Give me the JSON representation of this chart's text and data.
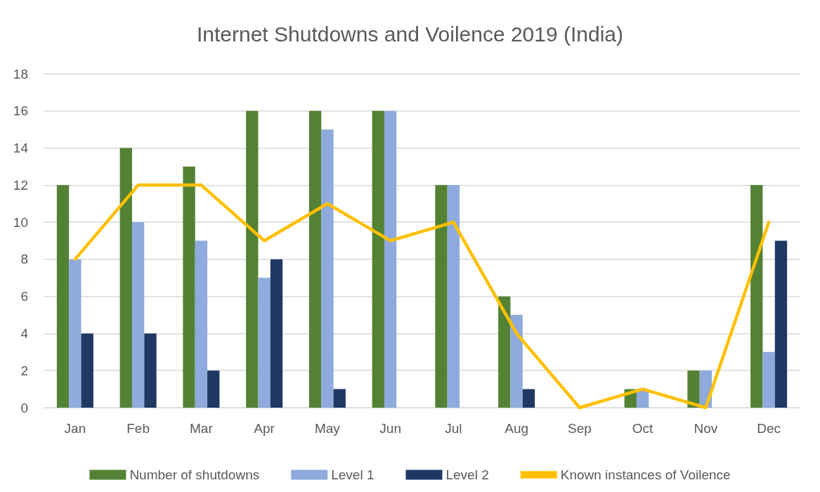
{
  "chart_data": {
    "type": "bar",
    "title": "Internet Shutdowns and Voilence 2019 (India)",
    "categories": [
      "Jan",
      "Feb",
      "Mar",
      "Apr",
      "May",
      "Jun",
      "Jul",
      "Aug",
      "Sep",
      "Oct",
      "Nov",
      "Dec"
    ],
    "series": [
      {
        "name": "Number of shutdowns",
        "color": "#548235",
        "values": [
          12,
          14,
          13,
          16,
          16,
          16,
          12,
          6,
          0,
          1,
          2,
          12
        ]
      },
      {
        "name": "Level 1",
        "color": "#8faadc",
        "values": [
          8,
          10,
          9,
          7,
          15,
          16,
          12,
          5,
          0,
          1,
          2,
          3
        ]
      },
      {
        "name": "Level 2",
        "color": "#203864",
        "values": [
          4,
          4,
          2,
          8,
          1,
          0,
          0,
          1,
          0,
          0,
          0,
          9
        ]
      },
      {
        "name": "Known instances of Voilence",
        "type": "line",
        "color": "#ffc000",
        "values": [
          8,
          12,
          12,
          9,
          11,
          9,
          10,
          4,
          0,
          1,
          0,
          10
        ]
      }
    ],
    "ylim": [
      0,
      18
    ],
    "yticks": [
      0,
      2,
      4,
      6,
      8,
      10,
      12,
      14,
      16,
      18
    ],
    "grid": "y",
    "legend": "bottom",
    "marker": "none",
    "line_style": "solid"
  }
}
